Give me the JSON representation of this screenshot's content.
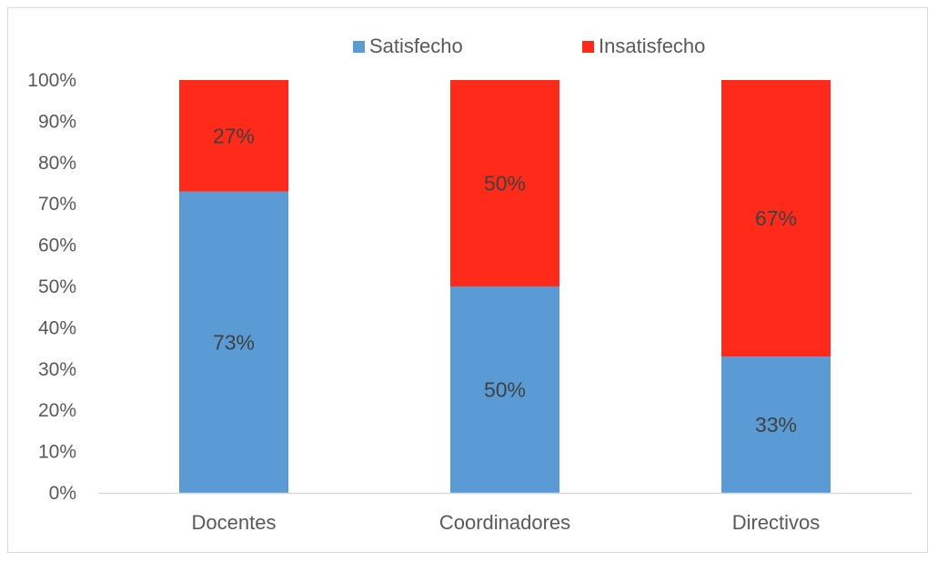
{
  "chart_data": {
    "type": "bar",
    "stacked": true,
    "categories": [
      "Docentes",
      "Coordinadores",
      "Directivos"
    ],
    "series": [
      {
        "name": "Satisfecho",
        "values": [
          73,
          50,
          33
        ],
        "color": "#5b9bd5",
        "labels": [
          "73%",
          "50%",
          "33%"
        ]
      },
      {
        "name": "Insatisfecho",
        "values": [
          27,
          50,
          67
        ],
        "color": "#ff2a1a",
        "labels": [
          "27%",
          "50%",
          "67%"
        ]
      }
    ],
    "y_ticks": [
      "0%",
      "10%",
      "20%",
      "30%",
      "40%",
      "50%",
      "60%",
      "70%",
      "80%",
      "90%",
      "100%"
    ],
    "ylim": [
      0,
      100
    ],
    "grid": false,
    "legend_position": "top",
    "title": "",
    "xlabel": "",
    "ylabel": ""
  }
}
